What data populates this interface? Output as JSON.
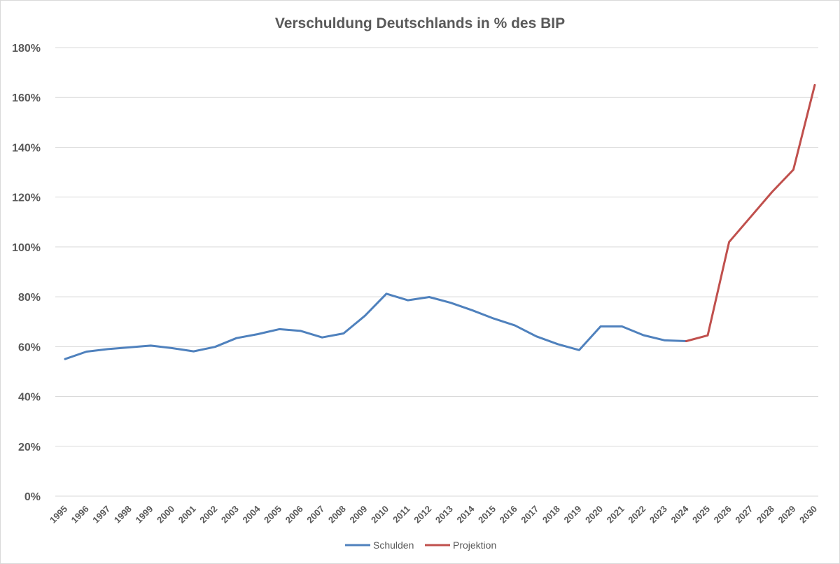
{
  "chart_data": {
    "type": "line",
    "title": "Verschuldung Deutschlands in % des BIP",
    "xlabel": "",
    "ylabel": "",
    "ylim": [
      0,
      180
    ],
    "y_tick_step": 20,
    "y_tick_suffix": "%",
    "grid": true,
    "legend_position": "bottom",
    "categories": [
      "1995",
      "1996",
      "1997",
      "1998",
      "1999",
      "2000",
      "2001",
      "2002",
      "2003",
      "2004",
      "2005",
      "2006",
      "2007",
      "2008",
      "2009",
      "2010",
      "2011",
      "2012",
      "2013",
      "2014",
      "2015",
      "2016",
      "2017",
      "2018",
      "2019",
      "2020",
      "2021",
      "2022",
      "2023",
      "2024",
      "2025",
      "2026",
      "2027",
      "2028",
      "2029",
      "2030"
    ],
    "series": [
      {
        "name": "Schulden",
        "color": "#4f81bd",
        "values": [
          55,
          58,
          59,
          59.7,
          60.4,
          59.4,
          58.1,
          59.9,
          63.4,
          65,
          67,
          66.3,
          63.7,
          65.3,
          72.4,
          81.2,
          78.6,
          79.9,
          77.6,
          74.6,
          71.3,
          68.5,
          64.1,
          61,
          58.6,
          68.1,
          68.1,
          64.6,
          62.5,
          62.2,
          null,
          null,
          null,
          null,
          null,
          null
        ]
      },
      {
        "name": "Projektion",
        "color": "#c0504d",
        "values": [
          null,
          null,
          null,
          null,
          null,
          null,
          null,
          null,
          null,
          null,
          null,
          null,
          null,
          null,
          null,
          null,
          null,
          null,
          null,
          null,
          null,
          null,
          null,
          null,
          null,
          null,
          null,
          null,
          null,
          62.2,
          64.5,
          102,
          112,
          122,
          131,
          165
        ]
      }
    ]
  }
}
